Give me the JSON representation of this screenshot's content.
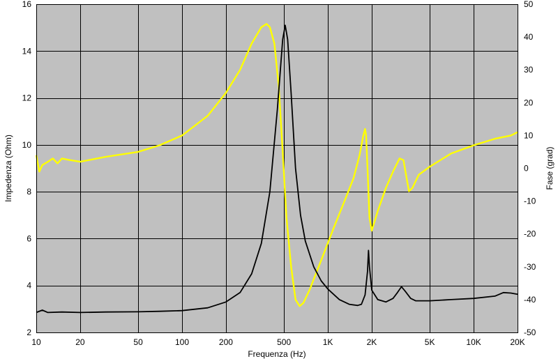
{
  "chart_data": {
    "type": "line",
    "title": "",
    "xlabel": "Frequenza (Hz)",
    "ylabel_left": "Impedenza (Ohm)",
    "ylabel_right": "Fase (grad)",
    "x_scale": "log",
    "xlim": [
      10,
      20000
    ],
    "ylim_left": [
      2,
      16
    ],
    "ylim_right": [
      -50,
      50
    ],
    "grid": true,
    "plot_background": "#c0c0c0",
    "x_ticks": [
      {
        "value": 10,
        "label": "10"
      },
      {
        "value": 20,
        "label": "20"
      },
      {
        "value": 50,
        "label": "50"
      },
      {
        "value": 100,
        "label": "100"
      },
      {
        "value": 200,
        "label": "200"
      },
      {
        "value": 500,
        "label": "500"
      },
      {
        "value": 1000,
        "label": "1K"
      },
      {
        "value": 2000,
        "label": "2K"
      },
      {
        "value": 5000,
        "label": "5K"
      },
      {
        "value": 10000,
        "label": "10K"
      },
      {
        "value": 20000,
        "label": "20K"
      }
    ],
    "y_left_ticks": [
      {
        "value": 2,
        "label": "2"
      },
      {
        "value": 4,
        "label": "4"
      },
      {
        "value": 6,
        "label": "6"
      },
      {
        "value": 8,
        "label": "8"
      },
      {
        "value": 10,
        "label": "10"
      },
      {
        "value": 12,
        "label": "12"
      },
      {
        "value": 14,
        "label": "14"
      },
      {
        "value": 16,
        "label": "16"
      }
    ],
    "y_right_ticks": [
      {
        "value": 50,
        "label": "50"
      },
      {
        "value": 40,
        "label": "40"
      },
      {
        "value": 30,
        "label": "30"
      },
      {
        "value": 20,
        "label": "20"
      },
      {
        "value": 10,
        "label": "10"
      },
      {
        "value": 0,
        "label": "0"
      },
      {
        "value": -10,
        "label": "-10"
      },
      {
        "value": -20,
        "label": "-20"
      },
      {
        "value": -30,
        "label": "-30"
      },
      {
        "value": -40,
        "label": "-40"
      },
      {
        "value": -50,
        "label": "-50"
      }
    ],
    "series": [
      {
        "axis": "left",
        "color": "#000000",
        "points": [
          [
            10,
            2.85
          ],
          [
            11,
            2.95
          ],
          [
            12,
            2.85
          ],
          [
            15,
            2.87
          ],
          [
            20,
            2.85
          ],
          [
            30,
            2.87
          ],
          [
            50,
            2.88
          ],
          [
            70,
            2.9
          ],
          [
            100,
            2.93
          ],
          [
            150,
            3.05
          ],
          [
            200,
            3.3
          ],
          [
            250,
            3.7
          ],
          [
            300,
            4.5
          ],
          [
            350,
            5.8
          ],
          [
            400,
            8.0
          ],
          [
            450,
            11.5
          ],
          [
            490,
            14.5
          ],
          [
            510,
            15.1
          ],
          [
            530,
            14.5
          ],
          [
            560,
            12.2
          ],
          [
            600,
            9.0
          ],
          [
            650,
            7.0
          ],
          [
            700,
            5.9
          ],
          [
            800,
            4.8
          ],
          [
            900,
            4.2
          ],
          [
            1000,
            3.85
          ],
          [
            1200,
            3.4
          ],
          [
            1400,
            3.2
          ],
          [
            1600,
            3.15
          ],
          [
            1700,
            3.2
          ],
          [
            1800,
            3.6
          ],
          [
            1870,
            4.6
          ],
          [
            1900,
            5.5
          ],
          [
            1930,
            4.8
          ],
          [
            2000,
            3.8
          ],
          [
            2200,
            3.4
          ],
          [
            2500,
            3.3
          ],
          [
            2800,
            3.45
          ],
          [
            3000,
            3.7
          ],
          [
            3200,
            3.95
          ],
          [
            3400,
            3.75
          ],
          [
            3700,
            3.45
          ],
          [
            4000,
            3.35
          ],
          [
            5000,
            3.35
          ],
          [
            7000,
            3.4
          ],
          [
            10000,
            3.45
          ],
          [
            14000,
            3.55
          ],
          [
            16000,
            3.7
          ],
          [
            18000,
            3.68
          ],
          [
            20000,
            3.63
          ]
        ]
      },
      {
        "axis": "right",
        "color": "#ffff00",
        "points": [
          [
            10,
            4
          ],
          [
            10.5,
            -1
          ],
          [
            11,
            1
          ],
          [
            12,
            2
          ],
          [
            13,
            3
          ],
          [
            14,
            1.5
          ],
          [
            15,
            3
          ],
          [
            17,
            2.5
          ],
          [
            20,
            2
          ],
          [
            30,
            3.5
          ],
          [
            50,
            5
          ],
          [
            70,
            7
          ],
          [
            100,
            10
          ],
          [
            150,
            16
          ],
          [
            200,
            23
          ],
          [
            250,
            30
          ],
          [
            300,
            38
          ],
          [
            350,
            43
          ],
          [
            380,
            44
          ],
          [
            400,
            43
          ],
          [
            430,
            38
          ],
          [
            460,
            25
          ],
          [
            490,
            5
          ],
          [
            520,
            -15
          ],
          [
            560,
            -30
          ],
          [
            600,
            -40
          ],
          [
            640,
            -42
          ],
          [
            680,
            -41
          ],
          [
            750,
            -37
          ],
          [
            900,
            -28
          ],
          [
            1100,
            -18
          ],
          [
            1300,
            -10
          ],
          [
            1500,
            -3
          ],
          [
            1650,
            4
          ],
          [
            1750,
            10
          ],
          [
            1800,
            12
          ],
          [
            1830,
            10
          ],
          [
            1870,
            0
          ],
          [
            1930,
            -15
          ],
          [
            2000,
            -19
          ],
          [
            2200,
            -13
          ],
          [
            2500,
            -6
          ],
          [
            2800,
            -1
          ],
          [
            3100,
            3
          ],
          [
            3300,
            2.5
          ],
          [
            3500,
            -4
          ],
          [
            3600,
            -7
          ],
          [
            3800,
            -6
          ],
          [
            4200,
            -2
          ],
          [
            5000,
            0.5
          ],
          [
            7000,
            4.5
          ],
          [
            10000,
            7
          ],
          [
            14000,
            9
          ],
          [
            18000,
            10
          ],
          [
            20000,
            11
          ]
        ]
      }
    ]
  }
}
